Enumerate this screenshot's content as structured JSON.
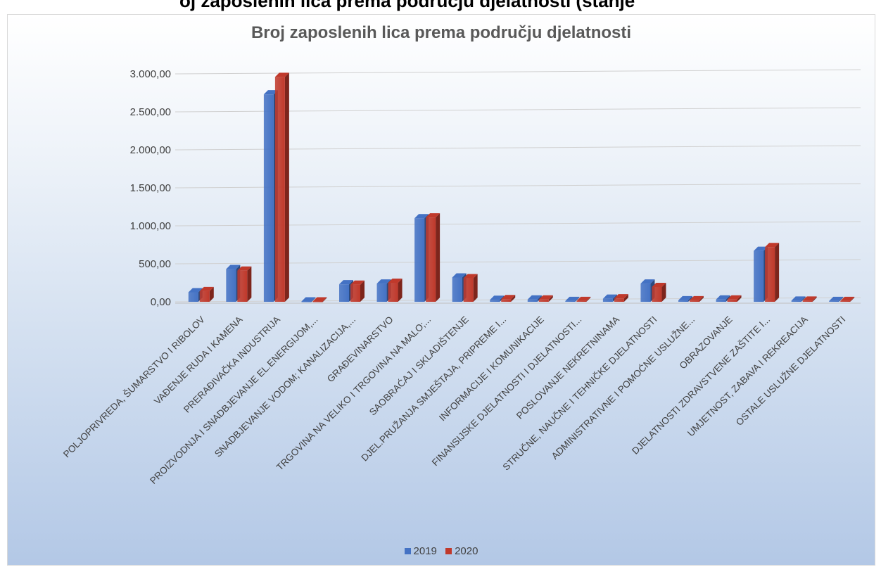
{
  "page": {
    "top_cut_text": "oj zaposlenih lica prema području djelatnosti (stanje"
  },
  "chart_data": {
    "type": "bar",
    "title": "Broj  zaposlenih lica prema području djelatnosti",
    "xlabel": "",
    "ylabel": "",
    "ylim": [
      0,
      3000
    ],
    "yticks": [
      "0,00",
      "500,00",
      "1.000,00",
      "1.500,00",
      "2.000,00",
      "2.500,00",
      "3.000,00"
    ],
    "ytick_values": [
      0,
      500,
      1000,
      1500,
      2000,
      2500,
      3000
    ],
    "grid": true,
    "legend_position": "bottom",
    "categories": [
      "POLJOPRIVREDA, ŠUMARSTVO I RIBOLOV",
      "VAĐENJE RUDA I KAMENA",
      "PRERAĐIVAČKA INDUSTRIJA",
      "PROIZVODNJA I SNADBJEVANJE EL.ENERGIJOM,...",
      "SNADBJEVANJE VODOM; KANALIZACIJA,...",
      "GRAĐEVINARSTVO",
      "TRGOVINA NA VELIKO I TRGOVINA NA MALO;...",
      "SAOBRAĆAJ I SKLADIŠTENJE",
      "DJEL.PRUŽANJA SMJEŠTAJA, PRIPREME I...",
      "INFORMACIJE I KOMUNIKACIJE",
      "FINANSIJSKE DJELATNOSTI I DJELATNOSTI...",
      "POSLOVANJE NEKRETNINAMA",
      "STRUČNE, NAUČNE I TEHNIČKE DJELATNOSTI",
      "ADMINISTRATIVNE I POMOĆNE USLUŽNE...",
      "OBRAZOVANJE",
      "DJELATNOSTI ZDRAVSTVENE ZAŠTITE I...",
      "UMJETNOST, ZABAVA I REKREACIJA",
      "OSTALE USLUŽNE DJELATNOSTI"
    ],
    "series": [
      {
        "name": "2019",
        "color": "#4472c4",
        "values": [
          125,
          430,
          2730,
          5,
          230,
          240,
          1100,
          320,
          25,
          30,
          10,
          40,
          240,
          20,
          30,
          670,
          15,
          10
        ]
      },
      {
        "name": "2020",
        "color": "#c0392b",
        "values": [
          140,
          410,
          2960,
          5,
          225,
          250,
          1110,
          310,
          35,
          30,
          10,
          45,
          195,
          20,
          30,
          720,
          15,
          10
        ]
      }
    ]
  }
}
